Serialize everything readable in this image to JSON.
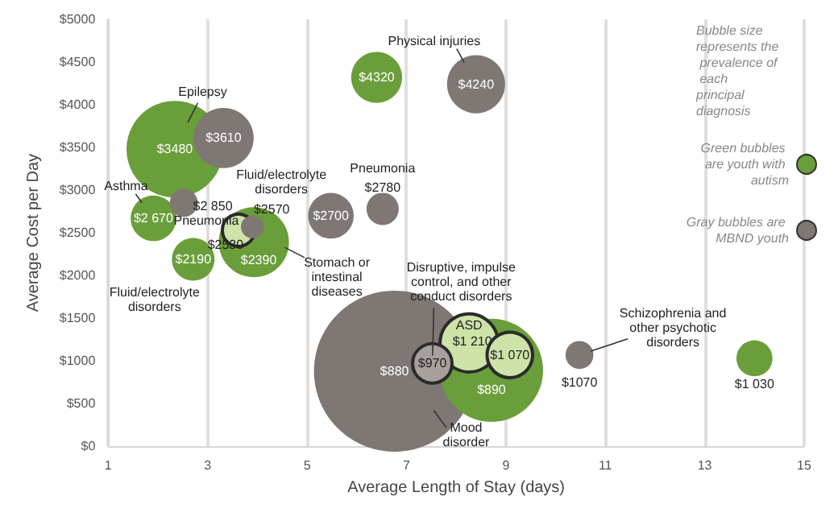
{
  "chart_data": {
    "type": "bubble",
    "xlabel": "Average Length of Stay (days)",
    "ylabel": "Average Cost per Day",
    "xlim": [
      1,
      15
    ],
    "xticks": [
      1,
      3,
      5,
      7,
      9,
      11,
      13,
      15
    ],
    "ylim": [
      0,
      5000
    ],
    "yticks": [
      {
        "value": 0,
        "label": "$0"
      },
      {
        "value": 500,
        "label": "$500"
      },
      {
        "value": 1000,
        "label": "$1000"
      },
      {
        "value": 1500,
        "label": "$1500"
      },
      {
        "value": 2000,
        "label": "$2000"
      },
      {
        "value": 2500,
        "label": "$2500"
      },
      {
        "value": 3000,
        "label": "$3000"
      },
      {
        "value": 3500,
        "label": "$3500"
      },
      {
        "value": 4000,
        "label": "$4000"
      },
      {
        "value": 4500,
        "label": "$4500"
      },
      {
        "value": 5000,
        "label": "$5000"
      }
    ],
    "grid": "x",
    "legend": "right",
    "series": [
      {
        "name": "Gray bubbles are MBND youth",
        "color": "#7f7773",
        "x": [
          6.76,
          3.32,
          2.52,
          3.9,
          5.48,
          6.52,
          8.4,
          7.52,
          10.48
        ],
        "values": [
          880,
          3610,
          2850,
          2570,
          2700,
          2780,
          4240,
          970,
          1070
        ],
        "sizes": [
          1,
          0.14,
          0.03,
          0.02,
          0.08,
          0.04,
          0.13,
          0.06,
          0.03
        ],
        "value_labels": [
          "$880",
          "$3610",
          "$2 850",
          "$2570",
          "$2700",
          "$2780",
          "$4240",
          "$970",
          "$1070"
        ],
        "colors": [
          "#7f7773",
          "#7f7773",
          "#7f7773",
          "#7f7773",
          "#7f7773",
          "#7f7773",
          "#7f7773",
          "#a8a09c",
          "#7f7773"
        ]
      },
      {
        "name": "Green bubbles are youth with autism",
        "color": "#6a9e3a",
        "x": [
          2.34,
          6.4,
          1.91,
          2.71,
          3.93,
          3.62,
          8.71,
          8.26,
          9.08,
          14.0
        ],
        "values": [
          3480,
          4320,
          2670,
          2190,
          2390,
          2530,
          890,
          1210,
          1070,
          1030
        ],
        "sizes": [
          0.36,
          0.1,
          0.08,
          0.07,
          0.19,
          0.04,
          0.41,
          0.13,
          0.08,
          0.05
        ],
        "value_labels": [
          "$3480",
          "$4320",
          "$2 670",
          "$2190",
          "$2390",
          "$2530",
          "$890",
          "$1 210",
          "$1 070",
          "$1 030"
        ],
        "colors": [
          "#6a9e3a",
          "#6a9e3a",
          "#6a9e3a",
          "#6a9e3a",
          "#6a9e3a",
          "#cde3a8",
          "#6a9e3a",
          "#cde3a8",
          "#cde3a8",
          "#6a9e3a"
        ]
      }
    ],
    "annotations": [
      "Bubble size represents the prevalence of each principal diagnosis",
      {
        "text": "Physical injuries",
        "x": 8.4,
        "y": 4240
      },
      "Epilepsy",
      {
        "text": "Asthma",
        "x": 1.91,
        "y": 2670
      },
      {
        "text": "Pneumonia",
        "x": 3.62,
        "y": 2530
      },
      {
        "text": "Fluid/electrolyte\ndisorders",
        "x": 2.71,
        "y": 2190
      },
      {
        "text": "Fluid/electrolyte\ndisorders",
        "x": 3.9,
        "y": 2570
      },
      {
        "text": "Pneumonia",
        "x": 6.52,
        "y": 2780
      },
      "Stomach or\nintestinal\ndiseases",
      {
        "text": "Disruptive, impulse\ncontrol, and other\nconduct disorders",
        "x": 7.52,
        "y": 970
      },
      {
        "text": "ASD",
        "x": 8.26,
        "y": 1210
      },
      "Mood\ndisorder",
      {
        "text": "Schizophrenia and\nother psychotic\ndisorders",
        "x": 10.48,
        "y": 1070
      }
    ]
  }
}
